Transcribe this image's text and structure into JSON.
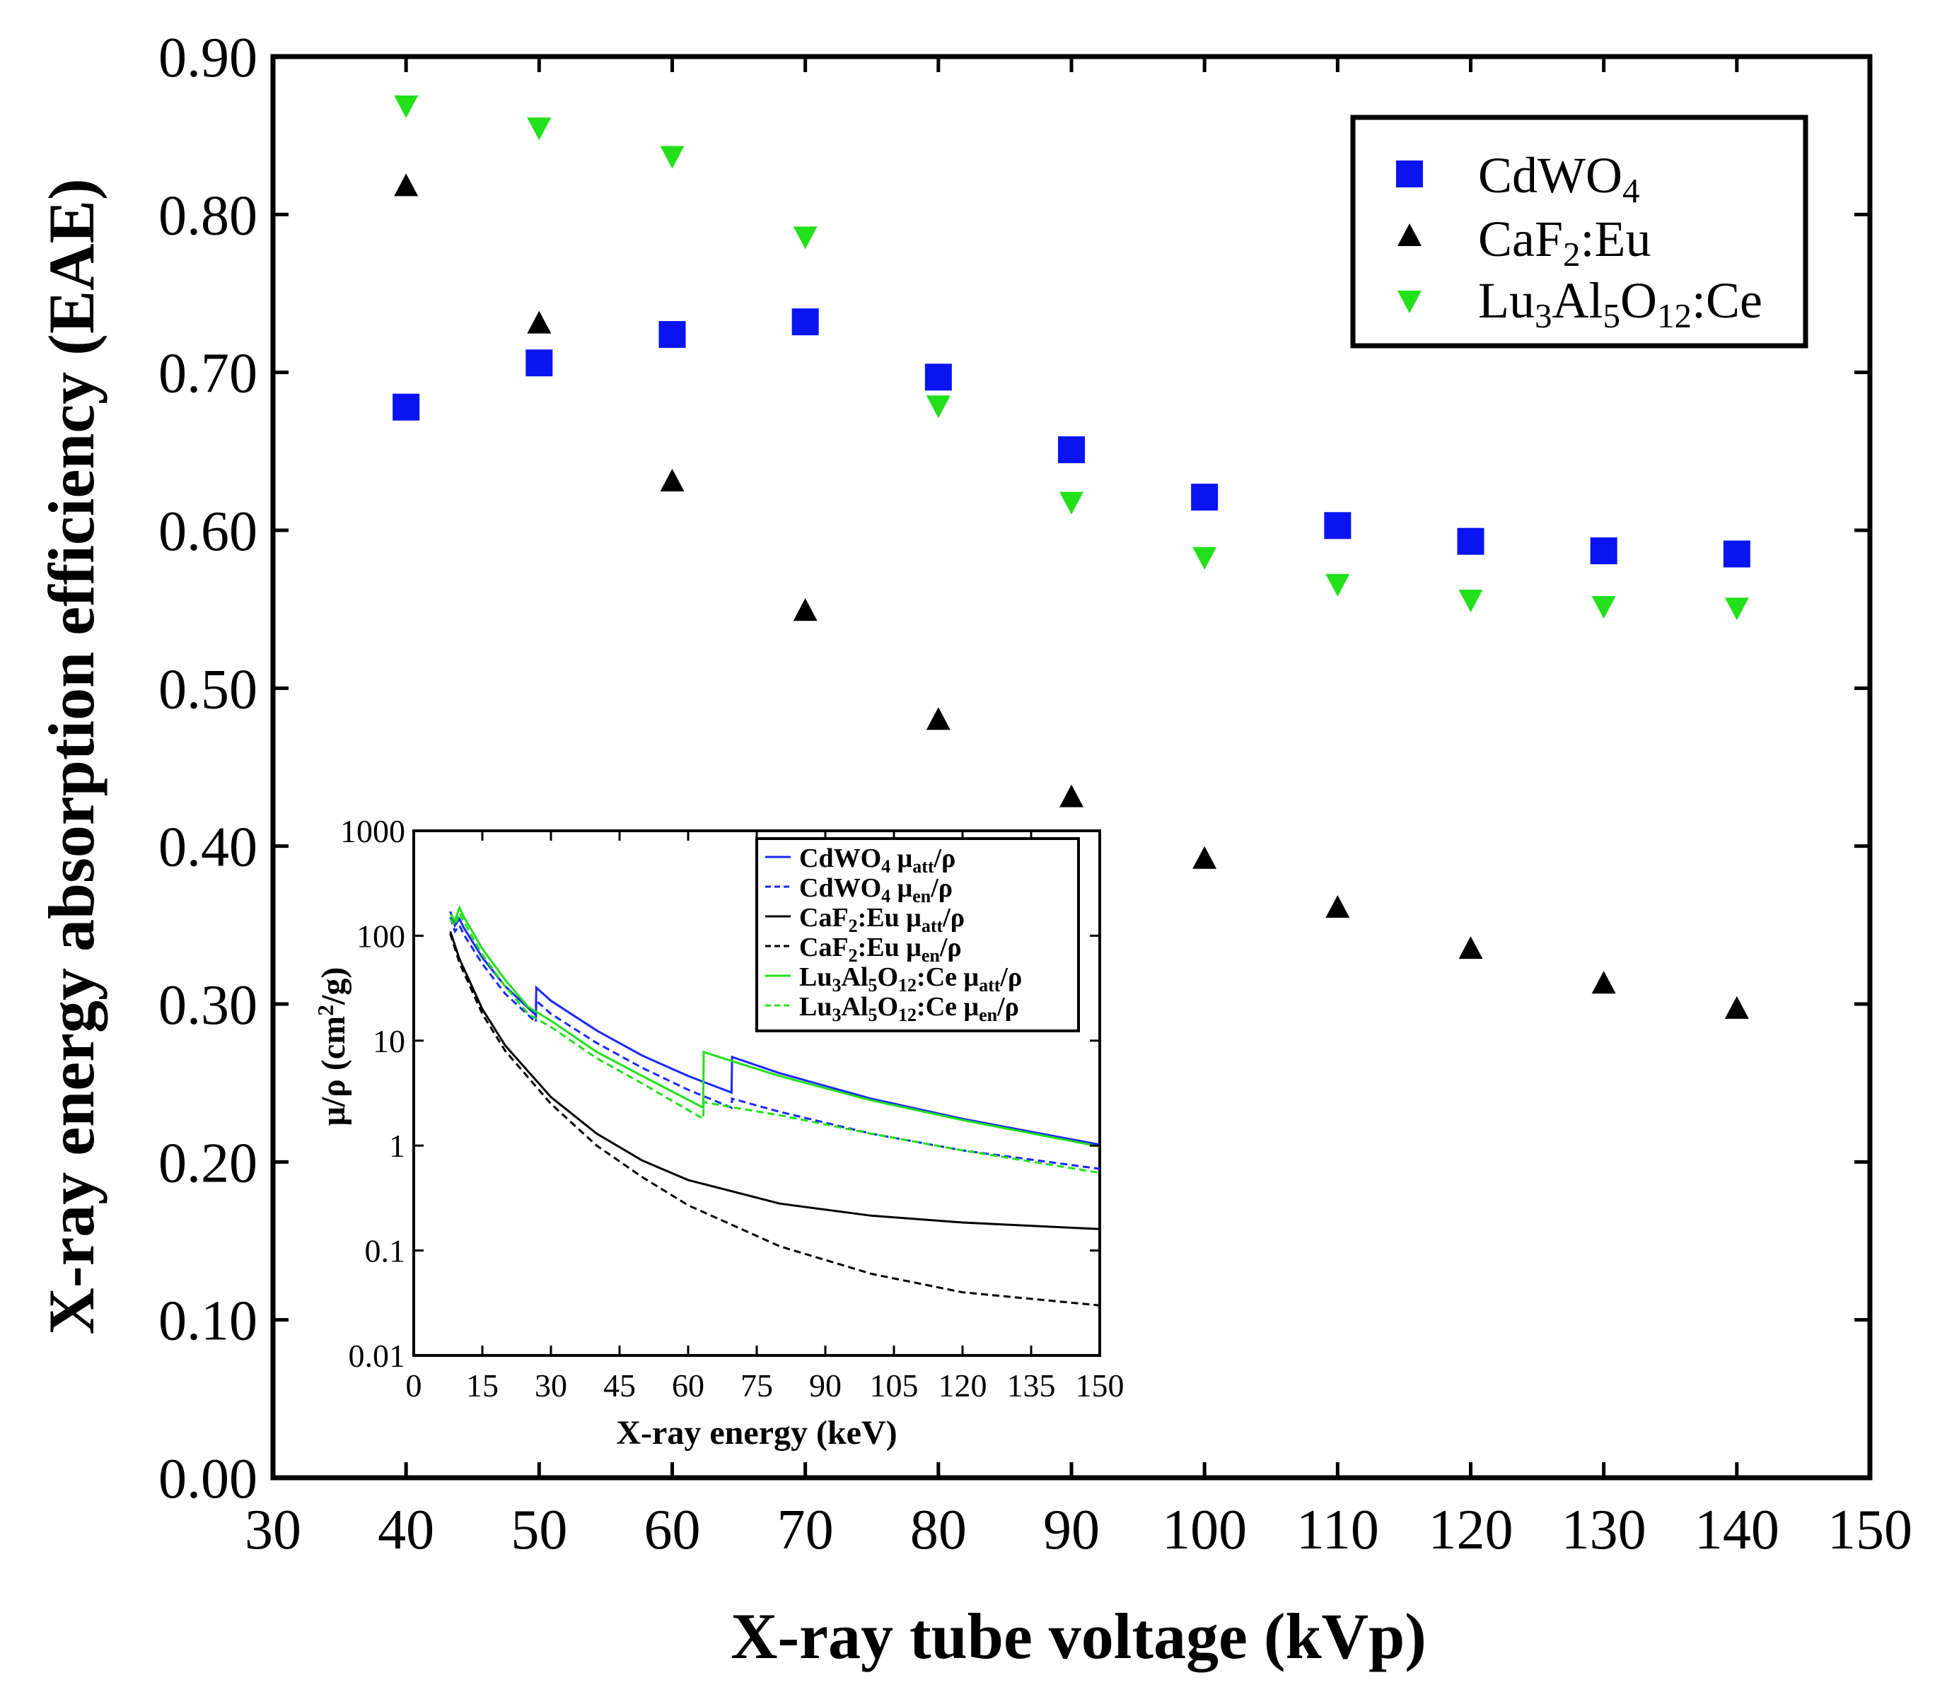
{
  "chart_data": [
    {
      "type": "scatter",
      "title": "",
      "xlabel": "X-ray tube voltage (kVp)",
      "ylabel": "X-ray energy absorption efficiency (EAE)",
      "xlim": [
        30,
        150
      ],
      "ylim": [
        0.0,
        0.9
      ],
      "xticks": [
        "30",
        "40",
        "50",
        "60",
        "70",
        "80",
        "90",
        "100",
        "110",
        "120",
        "130",
        "140",
        "150"
      ],
      "yticks": [
        "0.00",
        "0.10",
        "0.20",
        "0.30",
        "0.40",
        "0.50",
        "0.60",
        "0.70",
        "0.80",
        "0.90"
      ],
      "legend_position": "top-right",
      "x": [
        40,
        50,
        60,
        70,
        80,
        90,
        100,
        110,
        120,
        130,
        140
      ],
      "series": [
        {
          "name": "CdWO4",
          "label_parts": [
            "CdWO",
            "4",
            ""
          ],
          "marker": "square",
          "color": "#0a14f0",
          "values": [
            0.678,
            0.706,
            0.724,
            0.732,
            0.697,
            0.651,
            0.621,
            0.603,
            0.593,
            0.587,
            0.585
          ]
        },
        {
          "name": "CaF2:Eu",
          "label_parts": [
            "CaF",
            "2",
            ":Eu"
          ],
          "marker": "triangle-up",
          "color": "#000000",
          "values": [
            0.817,
            0.73,
            0.63,
            0.548,
            0.479,
            0.43,
            0.391,
            0.36,
            0.334,
            0.312,
            0.296
          ]
        },
        {
          "name": "Lu3Al5O12:Ce",
          "label_parts": [
            "Lu",
            "3",
            "Al",
            "5",
            "O",
            "12",
            ":Ce"
          ],
          "marker": "triangle-down",
          "color": "#22e01a",
          "values": [
            0.87,
            0.856,
            0.838,
            0.787,
            0.68,
            0.619,
            0.584,
            0.567,
            0.557,
            0.553,
            0.552
          ]
        }
      ]
    },
    {
      "type": "line",
      "title": "",
      "xlabel": "X-ray energy (keV)",
      "ylabel": "μ/ρ (cm2/g)",
      "ylabel_parts": [
        "μ/ρ (cm",
        "2",
        "/g)"
      ],
      "xlim": [
        0,
        150
      ],
      "ylim": [
        0.01,
        1000
      ],
      "yscale": "log",
      "xticks": [
        "0",
        "15",
        "30",
        "45",
        "60",
        "75",
        "90",
        "105",
        "120",
        "135",
        "150"
      ],
      "yticks": [
        "0.01",
        "0.1",
        "1",
        "10",
        "100",
        "1000"
      ],
      "legend_position": "top-right",
      "series": [
        {
          "name": "CdWO4 μatt/ρ",
          "label_parts": [
            "CdWO",
            "4",
            " μ",
            "att",
            "/ρ"
          ],
          "color": "#1a28ff",
          "dash": false,
          "x": [
            8,
            9,
            10,
            11,
            15,
            20,
            26.7,
            26.8,
            30,
            40,
            50,
            60,
            69.5,
            69.6,
            80,
            100,
            120,
            150
          ],
          "y": [
            170,
            125,
            145,
            118,
            62,
            33,
            17.5,
            32,
            24,
            12.5,
            7.2,
            4.6,
            3.2,
            7.0,
            4.9,
            2.8,
            1.8,
            1.02
          ]
        },
        {
          "name": "CdWO4 μen/ρ",
          "label_parts": [
            "CdWO",
            "4",
            " μ",
            "en",
            "/ρ"
          ],
          "color": "#1a28ff",
          "dash": true,
          "x": [
            8,
            9,
            10,
            11,
            15,
            20,
            26.7,
            26.8,
            30,
            40,
            50,
            60,
            69.5,
            69.6,
            80,
            100,
            120,
            150
          ],
          "y": [
            150,
            110,
            125,
            102,
            54,
            28,
            15,
            24,
            18,
            9.5,
            5.5,
            3.4,
            2.3,
            2.8,
            2.1,
            1.3,
            0.9,
            0.6
          ]
        },
        {
          "name": "CaF2:Eu μatt/ρ",
          "label_parts": [
            "CaF",
            "2",
            ":Eu μ",
            "att",
            "/ρ"
          ],
          "color": "#000000",
          "dash": false,
          "x": [
            8,
            10,
            15,
            20,
            30,
            40,
            50,
            60,
            80,
            100,
            120,
            150
          ],
          "y": [
            110,
            60,
            20,
            9,
            2.9,
            1.3,
            0.72,
            0.47,
            0.28,
            0.215,
            0.185,
            0.16
          ]
        },
        {
          "name": "CaF2:Eu μen/ρ",
          "label_parts": [
            "CaF",
            "2",
            ":Eu μ",
            "en",
            "/ρ"
          ],
          "color": "#000000",
          "dash": true,
          "x": [
            8,
            10,
            15,
            20,
            30,
            40,
            50,
            60,
            80,
            100,
            120,
            150
          ],
          "y": [
            105,
            55,
            18,
            8,
            2.5,
            1.0,
            0.5,
            0.27,
            0.11,
            0.06,
            0.04,
            0.03
          ]
        },
        {
          "name": "Lu3Al5O12:Ce μatt/ρ",
          "label_parts": [
            "Lu",
            "3",
            "Al",
            "5",
            "O",
            "12",
            ":Ce μ",
            "att",
            "/ρ"
          ],
          "color": "#22e01a",
          "dash": false,
          "x": [
            8,
            9,
            10,
            11,
            15,
            20,
            25,
            30,
            40,
            50,
            63.3,
            63.4,
            70,
            80,
            100,
            120,
            150
          ],
          "y": [
            160,
            140,
            185,
            150,
            75,
            38,
            21,
            15.5,
            7.8,
            4.6,
            2.3,
            7.8,
            6.3,
            4.6,
            2.7,
            1.75,
            0.98
          ]
        },
        {
          "name": "Lu3Al5O12:Ce μen/ρ",
          "label_parts": [
            "Lu",
            "3",
            "Al",
            "5",
            "O",
            "12",
            ":Ce μ",
            "en",
            "/ρ"
          ],
          "color": "#22e01a",
          "dash": true,
          "x": [
            8,
            9,
            10,
            11,
            15,
            20,
            25,
            30,
            40,
            50,
            63.3,
            63.4,
            70,
            80,
            100,
            120,
            150
          ],
          "y": [
            145,
            125,
            165,
            135,
            66,
            33,
            18,
            13.5,
            6.8,
            3.9,
            1.8,
            2.6,
            2.3,
            1.95,
            1.3,
            0.9,
            0.55
          ]
        }
      ]
    }
  ]
}
